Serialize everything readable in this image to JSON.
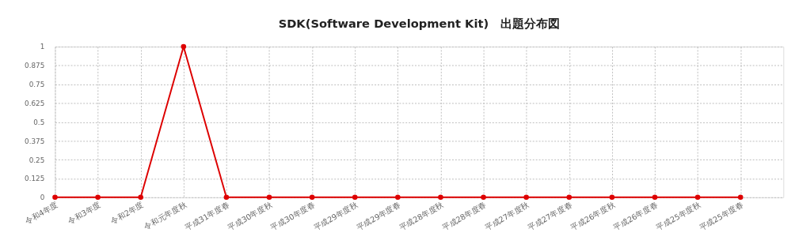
{
  "chart_data": {
    "type": "line",
    "title": "SDK(Software Development Kit)　出題分布図",
    "categories": [
      "令和4年度",
      "令和3年度",
      "令和2年度",
      "令和元年度秋",
      "平成31年度春",
      "平成30年度秋",
      "平成30年度春",
      "平成29年度秋",
      "平成29年度春",
      "平成28年度秋",
      "平成28年度春",
      "平成27年度秋",
      "平成27年度春",
      "平成26年度秋",
      "平成26年度春",
      "平成25年度秋",
      "平成25年度春"
    ],
    "series": [
      {
        "color": "#dd0000",
        "values": [
          0,
          0,
          0,
          1,
          0,
          0,
          0,
          0,
          0,
          0,
          0,
          0,
          0,
          0,
          0,
          0,
          0
        ]
      }
    ],
    "ylim": [
      0,
      1
    ],
    "yticks": [
      0,
      0.125,
      0.25,
      0.375,
      0.5,
      0.625,
      0.75,
      0.875,
      1
    ],
    "grid": true,
    "marker": "circle",
    "line_style": "solid"
  }
}
